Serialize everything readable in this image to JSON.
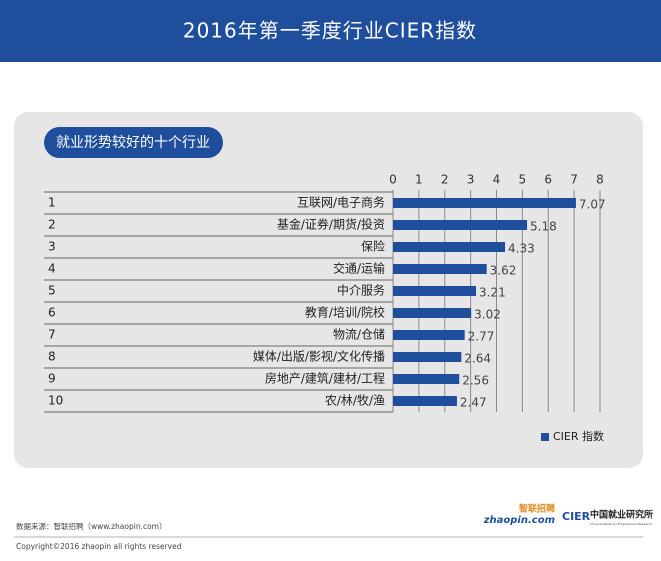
{
  "chart_data": {
    "type": "hbar",
    "title": "2016年第一季度行业CIER指数",
    "panel_label": "就业形势较好的十个行业",
    "ranks": [
      1,
      2,
      3,
      4,
      5,
      6,
      7,
      8,
      9,
      10
    ],
    "categories": [
      "互联网/电子商务",
      "基金/证券/期货/投资",
      "保险",
      "交通/运输",
      "中介服务",
      "教育/培训/院校",
      "物流/仓储",
      "媒体/出版/影视/文化传播",
      "房地产/建筑/建材/工程",
      "农/林/牧/渔"
    ],
    "series": [
      {
        "name": "CIER 指数",
        "color": "#1f4e9c",
        "values": [
          7.07,
          5.18,
          4.33,
          3.62,
          3.21,
          3.02,
          2.77,
          2.64,
          2.56,
          2.47
        ]
      }
    ],
    "xlim": [
      0,
      8
    ],
    "xticks": [
      0,
      1,
      2,
      3,
      4,
      5,
      6,
      7,
      8
    ],
    "grid": true,
    "legend": "bottom-right"
  },
  "footer": {
    "source": "数据来源：智联招聘（www.zhaopin.com）",
    "copyright": "Copyright©2016 zhaopin all rights reserved",
    "logo1_cn": "智联招聘",
    "logo1_en": "zhaopin.com",
    "logo2_mark": "CIER",
    "logo2_cn": "中国就业研究所",
    "logo2_en": "China Institute for Employment Research"
  }
}
